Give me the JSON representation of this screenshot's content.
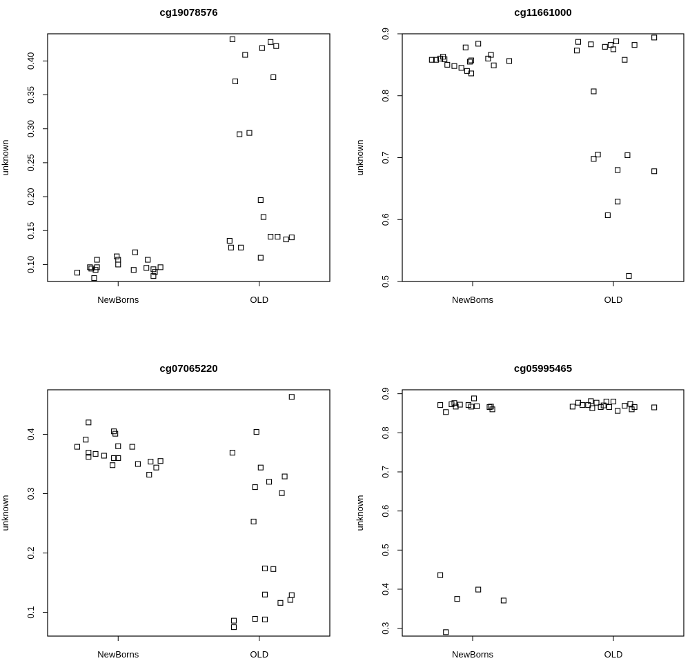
{
  "figure": {
    "chart_data": [
      {
        "type": "scatter",
        "title": "cg19078576",
        "xlabel": "",
        "ylabel": "unknown",
        "categories": [
          "NewBorns",
          "OLD"
        ],
        "yticks": [
          "0.10",
          "0.15",
          "0.20",
          "0.25",
          "0.30",
          "0.35",
          "0.40"
        ],
        "ylim": [
          0.075,
          0.44
        ],
        "series": [
          {
            "name": "NewBorns",
            "category": "NewBorns",
            "points": [
              {
                "x": 0.71,
                "y": 0.088
              },
              {
                "x": 0.8,
                "y": 0.096
              },
              {
                "x": 0.81,
                "y": 0.094
              },
              {
                "x": 0.83,
                "y": 0.08
              },
              {
                "x": 0.85,
                "y": 0.107
              },
              {
                "x": 0.85,
                "y": 0.096
              },
              {
                "x": 0.84,
                "y": 0.092
              },
              {
                "x": 0.99,
                "y": 0.112
              },
              {
                "x": 1.0,
                "y": 0.107
              },
              {
                "x": 1.0,
                "y": 0.1
              },
              {
                "x": 1.12,
                "y": 0.118
              },
              {
                "x": 1.11,
                "y": 0.092
              },
              {
                "x": 1.2,
                "y": 0.095
              },
              {
                "x": 1.21,
                "y": 0.107
              },
              {
                "x": 1.25,
                "y": 0.093
              },
              {
                "x": 1.26,
                "y": 0.089
              },
              {
                "x": 1.25,
                "y": 0.083
              },
              {
                "x": 1.3,
                "y": 0.096
              }
            ]
          },
          {
            "name": "OLD",
            "category": "OLD",
            "points": [
              {
                "x": 1.81,
                "y": 0.432
              },
              {
                "x": 1.83,
                "y": 0.37
              },
              {
                "x": 1.9,
                "y": 0.409
              },
              {
                "x": 1.86,
                "y": 0.292
              },
              {
                "x": 1.93,
                "y": 0.294
              },
              {
                "x": 1.79,
                "y": 0.135
              },
              {
                "x": 1.8,
                "y": 0.125
              },
              {
                "x": 1.87,
                "y": 0.125
              },
              {
                "x": 2.02,
                "y": 0.419
              },
              {
                "x": 2.01,
                "y": 0.195
              },
              {
                "x": 2.03,
                "y": 0.17
              },
              {
                "x": 2.01,
                "y": 0.11
              },
              {
                "x": 2.08,
                "y": 0.428
              },
              {
                "x": 2.12,
                "y": 0.422
              },
              {
                "x": 2.1,
                "y": 0.376
              },
              {
                "x": 2.08,
                "y": 0.141
              },
              {
                "x": 2.13,
                "y": 0.141
              },
              {
                "x": 2.19,
                "y": 0.137
              },
              {
                "x": 2.23,
                "y": 0.14
              }
            ]
          }
        ]
      },
      {
        "type": "scatter",
        "title": "cg11661000",
        "xlabel": "",
        "ylabel": "unknown",
        "categories": [
          "NewBorns",
          "OLD"
        ],
        "yticks": [
          "0.5",
          "0.6",
          "0.7",
          "0.8",
          "0.9"
        ],
        "ylim": [
          0.5,
          0.9
        ],
        "series": [
          {
            "name": "NewBorns",
            "category": "NewBorns",
            "points": [
              {
                "x": 0.71,
                "y": 0.858
              },
              {
                "x": 0.74,
                "y": 0.858
              },
              {
                "x": 0.77,
                "y": 0.86
              },
              {
                "x": 0.79,
                "y": 0.863
              },
              {
                "x": 0.8,
                "y": 0.859
              },
              {
                "x": 0.82,
                "y": 0.85
              },
              {
                "x": 0.87,
                "y": 0.848
              },
              {
                "x": 0.92,
                "y": 0.845
              },
              {
                "x": 0.95,
                "y": 0.878
              },
              {
                "x": 0.96,
                "y": 0.84
              },
              {
                "x": 0.98,
                "y": 0.855
              },
              {
                "x": 0.99,
                "y": 0.857
              },
              {
                "x": 0.99,
                "y": 0.836
              },
              {
                "x": 1.04,
                "y": 0.884
              },
              {
                "x": 1.11,
                "y": 0.86
              },
              {
                "x": 1.13,
                "y": 0.866
              },
              {
                "x": 1.15,
                "y": 0.849
              },
              {
                "x": 1.26,
                "y": 0.856
              }
            ]
          },
          {
            "name": "OLD",
            "category": "OLD",
            "points": [
              {
                "x": 1.74,
                "y": 0.873
              },
              {
                "x": 1.75,
                "y": 0.887
              },
              {
                "x": 1.84,
                "y": 0.883
              },
              {
                "x": 1.86,
                "y": 0.807
              },
              {
                "x": 1.86,
                "y": 0.698
              },
              {
                "x": 1.89,
                "y": 0.705
              },
              {
                "x": 1.94,
                "y": 0.879
              },
              {
                "x": 1.98,
                "y": 0.882
              },
              {
                "x": 1.96,
                "y": 0.607
              },
              {
                "x": 2.0,
                "y": 0.875
              },
              {
                "x": 2.02,
                "y": 0.888
              },
              {
                "x": 2.03,
                "y": 0.68
              },
              {
                "x": 2.03,
                "y": 0.629
              },
              {
                "x": 2.08,
                "y": 0.858
              },
              {
                "x": 2.1,
                "y": 0.704
              },
              {
                "x": 2.11,
                "y": 0.509
              },
              {
                "x": 2.15,
                "y": 0.882
              },
              {
                "x": 2.29,
                "y": 0.894
              },
              {
                "x": 2.29,
                "y": 0.678
              }
            ]
          }
        ]
      },
      {
        "type": "scatter",
        "title": "cg07065220",
        "xlabel": "",
        "ylabel": "unknown",
        "categories": [
          "NewBorns",
          "OLD"
        ],
        "yticks": [
          "0.1",
          "0.2",
          "0.3",
          "0.4"
        ],
        "ylim": [
          0.06,
          0.475
        ],
        "series": [
          {
            "name": "NewBorns",
            "category": "NewBorns",
            "points": [
              {
                "x": 0.71,
                "y": 0.379
              },
              {
                "x": 0.77,
                "y": 0.391
              },
              {
                "x": 0.79,
                "y": 0.42
              },
              {
                "x": 0.79,
                "y": 0.369
              },
              {
                "x": 0.79,
                "y": 0.362
              },
              {
                "x": 0.84,
                "y": 0.367
              },
              {
                "x": 0.9,
                "y": 0.364
              },
              {
                "x": 0.97,
                "y": 0.405
              },
              {
                "x": 0.98,
                "y": 0.401
              },
              {
                "x": 0.97,
                "y": 0.36
              },
              {
                "x": 0.96,
                "y": 0.348
              },
              {
                "x": 1.0,
                "y": 0.36
              },
              {
                "x": 1.0,
                "y": 0.38
              },
              {
                "x": 1.1,
                "y": 0.379
              },
              {
                "x": 1.14,
                "y": 0.35
              },
              {
                "x": 1.23,
                "y": 0.354
              },
              {
                "x": 1.22,
                "y": 0.332
              },
              {
                "x": 1.27,
                "y": 0.344
              },
              {
                "x": 1.3,
                "y": 0.355
              }
            ]
          },
          {
            "name": "OLD",
            "category": "OLD",
            "points": [
              {
                "x": 1.81,
                "y": 0.369
              },
              {
                "x": 1.82,
                "y": 0.086
              },
              {
                "x": 1.82,
                "y": 0.075
              },
              {
                "x": 1.96,
                "y": 0.253
              },
              {
                "x": 1.98,
                "y": 0.404
              },
              {
                "x": 1.97,
                "y": 0.311
              },
              {
                "x": 1.97,
                "y": 0.089
              },
              {
                "x": 2.01,
                "y": 0.344
              },
              {
                "x": 2.04,
                "y": 0.174
              },
              {
                "x": 2.04,
                "y": 0.13
              },
              {
                "x": 2.04,
                "y": 0.088
              },
              {
                "x": 2.07,
                "y": 0.32
              },
              {
                "x": 2.1,
                "y": 0.173
              },
              {
                "x": 2.16,
                "y": 0.301
              },
              {
                "x": 2.18,
                "y": 0.329
              },
              {
                "x": 2.15,
                "y": 0.116
              },
              {
                "x": 2.22,
                "y": 0.121
              },
              {
                "x": 2.23,
                "y": 0.129
              },
              {
                "x": 2.23,
                "y": 0.463
              }
            ]
          }
        ]
      },
      {
        "type": "scatter",
        "title": "cg05995465",
        "xlabel": "",
        "ylabel": "unknown",
        "categories": [
          "NewBorns",
          "OLD"
        ],
        "yticks": [
          "0.3",
          "0.4",
          "0.5",
          "0.6",
          "0.7",
          "0.8",
          "0.9"
        ],
        "ylim": [
          0.28,
          0.91
        ],
        "series": [
          {
            "name": "NewBorns",
            "category": "NewBorns",
            "points": [
              {
                "x": 0.77,
                "y": 0.871
              },
              {
                "x": 0.77,
                "y": 0.436
              },
              {
                "x": 0.81,
                "y": 0.853
              },
              {
                "x": 0.81,
                "y": 0.29
              },
              {
                "x": 0.85,
                "y": 0.873
              },
              {
                "x": 0.87,
                "y": 0.876
              },
              {
                "x": 0.88,
                "y": 0.867
              },
              {
                "x": 0.89,
                "y": 0.375
              },
              {
                "x": 0.91,
                "y": 0.872
              },
              {
                "x": 0.97,
                "y": 0.871
              },
              {
                "x": 0.99,
                "y": 0.867
              },
              {
                "x": 1.01,
                "y": 0.888
              },
              {
                "x": 1.03,
                "y": 0.868
              },
              {
                "x": 1.04,
                "y": 0.399
              },
              {
                "x": 1.12,
                "y": 0.866
              },
              {
                "x": 1.13,
                "y": 0.867
              },
              {
                "x": 1.14,
                "y": 0.86
              },
              {
                "x": 1.22,
                "y": 0.371
              }
            ]
          },
          {
            "name": "OLD",
            "category": "OLD",
            "points": [
              {
                "x": 1.71,
                "y": 0.867
              },
              {
                "x": 1.75,
                "y": 0.877
              },
              {
                "x": 1.78,
                "y": 0.871
              },
              {
                "x": 1.82,
                "y": 0.871
              },
              {
                "x": 1.84,
                "y": 0.881
              },
              {
                "x": 1.85,
                "y": 0.863
              },
              {
                "x": 1.88,
                "y": 0.877
              },
              {
                "x": 1.91,
                "y": 0.866
              },
              {
                "x": 1.93,
                "y": 0.87
              },
              {
                "x": 1.95,
                "y": 0.88
              },
              {
                "x": 1.97,
                "y": 0.866
              },
              {
                "x": 2.0,
                "y": 0.88
              },
              {
                "x": 2.03,
                "y": 0.856
              },
              {
                "x": 2.08,
                "y": 0.869
              },
              {
                "x": 2.12,
                "y": 0.874
              },
              {
                "x": 2.13,
                "y": 0.86
              },
              {
                "x": 2.15,
                "y": 0.866
              },
              {
                "x": 2.29,
                "y": 0.865
              }
            ]
          }
        ]
      }
    ]
  }
}
